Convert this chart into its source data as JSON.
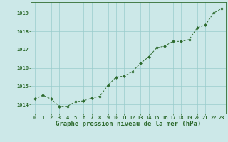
{
  "x": [
    0,
    1,
    2,
    3,
    4,
    5,
    6,
    7,
    8,
    9,
    10,
    11,
    12,
    13,
    14,
    15,
    16,
    17,
    18,
    19,
    20,
    21,
    22,
    23
  ],
  "y": [
    1014.3,
    1014.5,
    1014.3,
    1013.9,
    1013.9,
    1014.15,
    1014.2,
    1014.35,
    1014.45,
    1015.05,
    1015.5,
    1015.55,
    1015.8,
    1016.25,
    1016.6,
    1017.1,
    1017.2,
    1017.45,
    1017.45,
    1017.55,
    1018.2,
    1018.35,
    1019.0,
    1019.25
  ],
  "line_color": "#2d6a2d",
  "marker_color": "#2d6a2d",
  "bg_color": "#cce8e8",
  "grid_color": "#99cccc",
  "xlabel": "Graphe pression niveau de la mer (hPa)",
  "ylim": [
    1013.5,
    1019.6
  ],
  "yticks": [
    1014,
    1015,
    1016,
    1017,
    1018,
    1019
  ],
  "xticks": [
    0,
    1,
    2,
    3,
    4,
    5,
    6,
    7,
    8,
    9,
    10,
    11,
    12,
    13,
    14,
    15,
    16,
    17,
    18,
    19,
    20,
    21,
    22,
    23
  ],
  "tick_label_color": "#2d6a2d",
  "tick_label_size": 5.0,
  "xlabel_size": 6.5,
  "xlabel_color": "#2d6a2d",
  "line_width": 0.7,
  "marker_size": 2.0
}
